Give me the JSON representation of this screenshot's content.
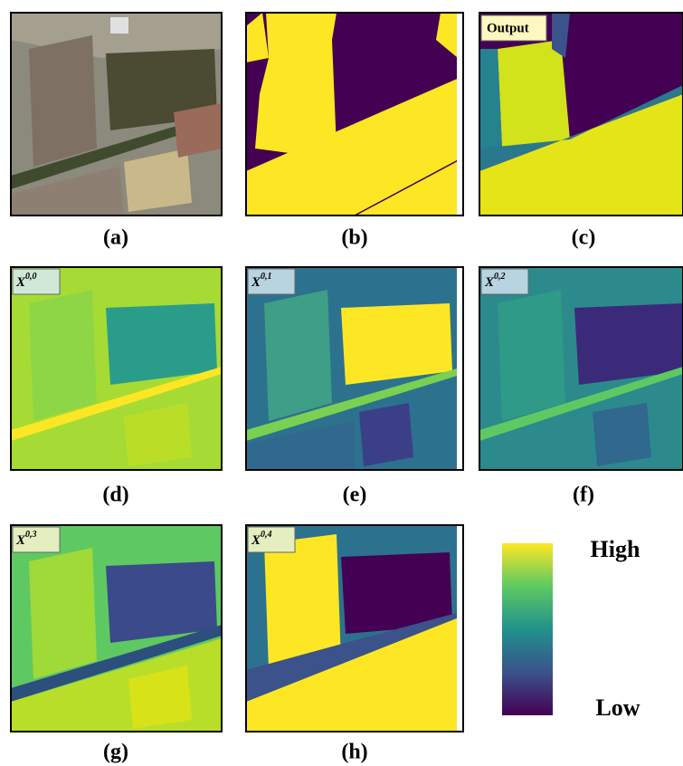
{
  "panels": [
    {
      "label": "(a)"
    },
    {
      "label": "(b)"
    },
    {
      "label": "(c)",
      "tag": "Output"
    },
    {
      "label": "(d)",
      "tag": {
        "base": "X",
        "sup": "0,0"
      }
    },
    {
      "label": "(e)",
      "tag": {
        "base": "X",
        "sup": "0,1"
      }
    },
    {
      "label": "(f)",
      "tag": {
        "base": "X",
        "sup": "0,2"
      }
    },
    {
      "label": "(g)",
      "tag": {
        "base": "X",
        "sup": "0,3"
      }
    },
    {
      "label": "(h)",
      "tag": {
        "base": "X",
        "sup": "0,4"
      }
    }
  ],
  "colorbar": {
    "high": "High",
    "low": "Low"
  }
}
